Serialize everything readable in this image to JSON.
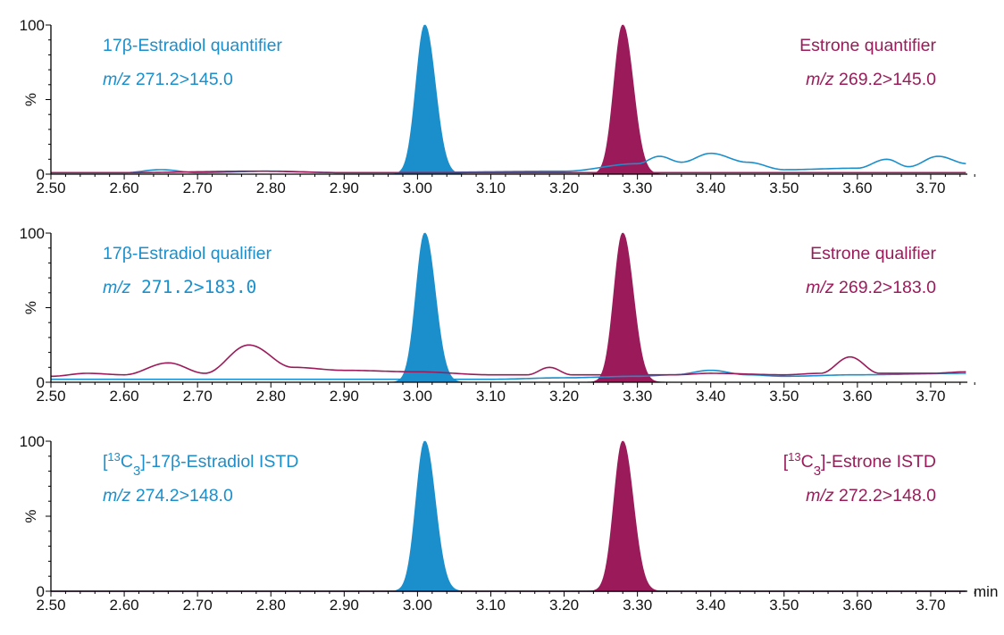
{
  "chart_data": [
    {
      "type": "line",
      "panel": "quantifier",
      "ylabel": "%",
      "xlim": [
        2.5,
        3.75
      ],
      "ylim": [
        0,
        100
      ],
      "x_ticks": [
        "2.50",
        "2.60",
        "2.70",
        "2.80",
        "2.90",
        "3.00",
        "3.10",
        "3.20",
        "3.30",
        "3.40",
        "3.50",
        "3.60",
        "3.70"
      ],
      "y_ticks": [
        "0",
        "100"
      ],
      "x_unit": "",
      "annotations": {
        "left_title": [
          "17",
          "β",
          "-Estradiol quantifier"
        ],
        "left_mz": [
          "m/z",
          " 271.2>145.0"
        ],
        "right_title": [
          "Estrone quantifier"
        ],
        "right_mz": [
          "m/z",
          " 269.2>145.0"
        ]
      },
      "peaks": [
        {
          "analyte": "17β-Estradiol",
          "rt": 3.01,
          "height": 100,
          "color": "#1a8fcc",
          "filled": true
        },
        {
          "analyte": "Estrone",
          "rt": 3.28,
          "height": 100,
          "color": "#9b1b5a",
          "filled": true
        }
      ],
      "series": [
        {
          "color": "#1a8fcc",
          "x": [
            2.5,
            2.6,
            2.65,
            2.7,
            2.8,
            2.9,
            2.96,
            3.2,
            3.3,
            3.33,
            3.36,
            3.4,
            3.45,
            3.5,
            3.6,
            3.64,
            3.67,
            3.71,
            3.75
          ],
          "values": [
            1,
            1,
            3,
            1,
            2,
            1,
            1,
            2,
            7,
            12,
            8,
            14,
            8,
            3,
            4,
            10,
            5,
            12,
            7
          ]
        },
        {
          "color": "#9b1b5a",
          "x": [
            2.5,
            2.6,
            2.78,
            2.9,
            3.0,
            3.1,
            3.2,
            3.5,
            3.75
          ],
          "values": [
            1,
            1,
            2,
            1,
            1,
            1,
            1,
            1,
            1
          ]
        }
      ]
    },
    {
      "type": "line",
      "panel": "qualifier",
      "ylabel": "%",
      "xlim": [
        2.5,
        3.75
      ],
      "ylim": [
        0,
        100
      ],
      "x_ticks": [
        "2.50",
        "2.60",
        "2.70",
        "2.80",
        "2.90",
        "3.00",
        "3.10",
        "3.20",
        "3.30",
        "3.40",
        "3.50",
        "3.60",
        "3.70"
      ],
      "y_ticks": [
        "0",
        "100"
      ],
      "x_unit": "",
      "annotations": {
        "left_title": [
          "17",
          "β",
          "-Estradiol qualifier"
        ],
        "left_mz": [
          "m/z",
          " 271.2>183.0"
        ],
        "right_title": [
          "Estrone qualifier"
        ],
        "right_mz": [
          "m/z",
          " 269.2>183.0"
        ]
      },
      "peaks": [
        {
          "analyte": "17β-Estradiol",
          "rt": 3.01,
          "height": 100,
          "color": "#1a8fcc",
          "filled": true
        },
        {
          "analyte": "Estrone",
          "rt": 3.28,
          "height": 100,
          "color": "#9b1b5a",
          "filled": true
        }
      ],
      "series": [
        {
          "color": "#1a8fcc",
          "x": [
            2.5,
            2.7,
            2.9,
            3.1,
            3.2,
            3.3,
            3.35,
            3.4,
            3.45,
            3.5,
            3.6,
            3.75
          ],
          "values": [
            2,
            2,
            2,
            2,
            3,
            4,
            5,
            8,
            5,
            4,
            5,
            6
          ]
        },
        {
          "color": "#9b1b5a",
          "x": [
            2.5,
            2.55,
            2.6,
            2.66,
            2.71,
            2.77,
            2.83,
            2.9,
            3.0,
            3.1,
            3.15,
            3.18,
            3.21,
            3.35,
            3.4,
            3.5,
            3.55,
            3.59,
            3.63,
            3.7,
            3.75
          ],
          "values": [
            4,
            6,
            5,
            13,
            6,
            25,
            10,
            8,
            7,
            5,
            5,
            10,
            5,
            5,
            6,
            5,
            6,
            17,
            6,
            6,
            7
          ]
        }
      ]
    },
    {
      "type": "line",
      "panel": "istd",
      "ylabel": "%",
      "xlim": [
        2.5,
        3.75
      ],
      "ylim": [
        0,
        100
      ],
      "x_ticks": [
        "2.50",
        "2.60",
        "2.70",
        "2.80",
        "2.90",
        "3.00",
        "3.10",
        "3.20",
        "3.30",
        "3.40",
        "3.50",
        "3.60",
        "3.70"
      ],
      "y_ticks": [
        "0",
        "100"
      ],
      "x_unit": "min",
      "annotations": {
        "left_title": [
          "[",
          "13",
          "C",
          "3",
          "]-17",
          "β",
          "-Estradiol ISTD"
        ],
        "left_mz": [
          "m/z",
          " 274.2>148.0"
        ],
        "right_title": [
          "[",
          "13",
          "C",
          "3",
          "]-Estrone ISTD"
        ],
        "right_mz": [
          "m/z",
          " 272.2>148.0"
        ]
      },
      "peaks": [
        {
          "analyte": "[13C3]-17β-Estradiol",
          "rt": 3.01,
          "height": 100,
          "color": "#1a8fcc",
          "filled": true
        },
        {
          "analyte": "[13C3]-Estrone",
          "rt": 3.28,
          "height": 100,
          "color": "#9b1b5a",
          "filled": true
        }
      ],
      "series": [
        {
          "color": "#1a8fcc",
          "x": [
            2.5,
            3.75
          ],
          "values": [
            0,
            0
          ]
        },
        {
          "color": "#9b1b5a",
          "x": [
            2.5,
            3.75
          ],
          "values": [
            0,
            0
          ]
        }
      ]
    }
  ]
}
